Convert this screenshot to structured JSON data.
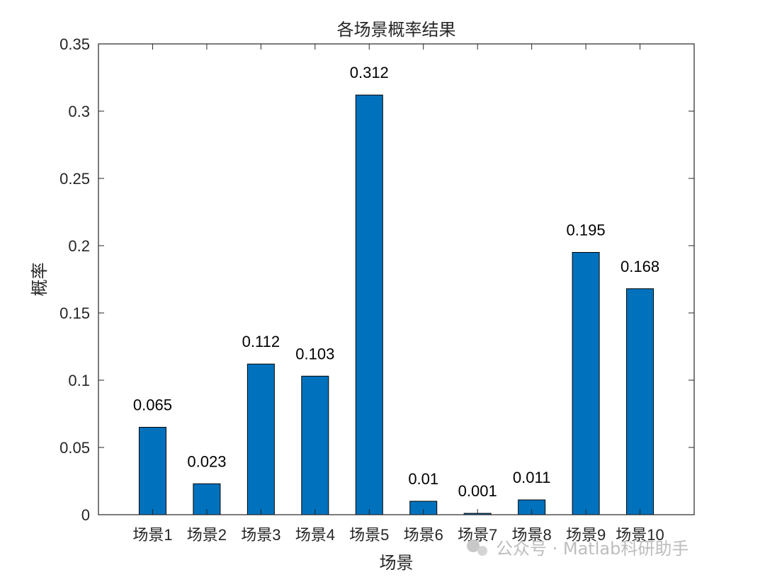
{
  "watermark": "公众号 · Matlab科研助手",
  "colors": {
    "bar": "#0072BD",
    "axis": "#262626",
    "background": "#ffffff"
  },
  "chart_data": {
    "type": "bar",
    "title": "各场景概率结果",
    "xlabel": "场景",
    "ylabel": "概率",
    "categories": [
      "场景1",
      "场景2",
      "场景3",
      "场景4",
      "场景5",
      "场景6",
      "场景7",
      "场景8",
      "场景9",
      "场景10"
    ],
    "values": [
      0.065,
      0.023,
      0.112,
      0.103,
      0.312,
      0.01,
      0.001,
      0.011,
      0.195,
      0.168
    ],
    "data_labels": [
      "0.065",
      "0.023",
      "0.112",
      "0.103",
      "0.312",
      "0.01",
      "0.001",
      "0.011",
      "0.195",
      "0.168"
    ],
    "ylim": [
      0,
      0.35
    ],
    "yticks": [
      0,
      0.05,
      0.1,
      0.15,
      0.2,
      0.25,
      0.3,
      0.35
    ],
    "ytick_labels": [
      "0",
      "0.05",
      "0.1",
      "0.15",
      "0.2",
      "0.25",
      "0.3",
      "0.35"
    ],
    "grid": false,
    "legend": "none"
  }
}
